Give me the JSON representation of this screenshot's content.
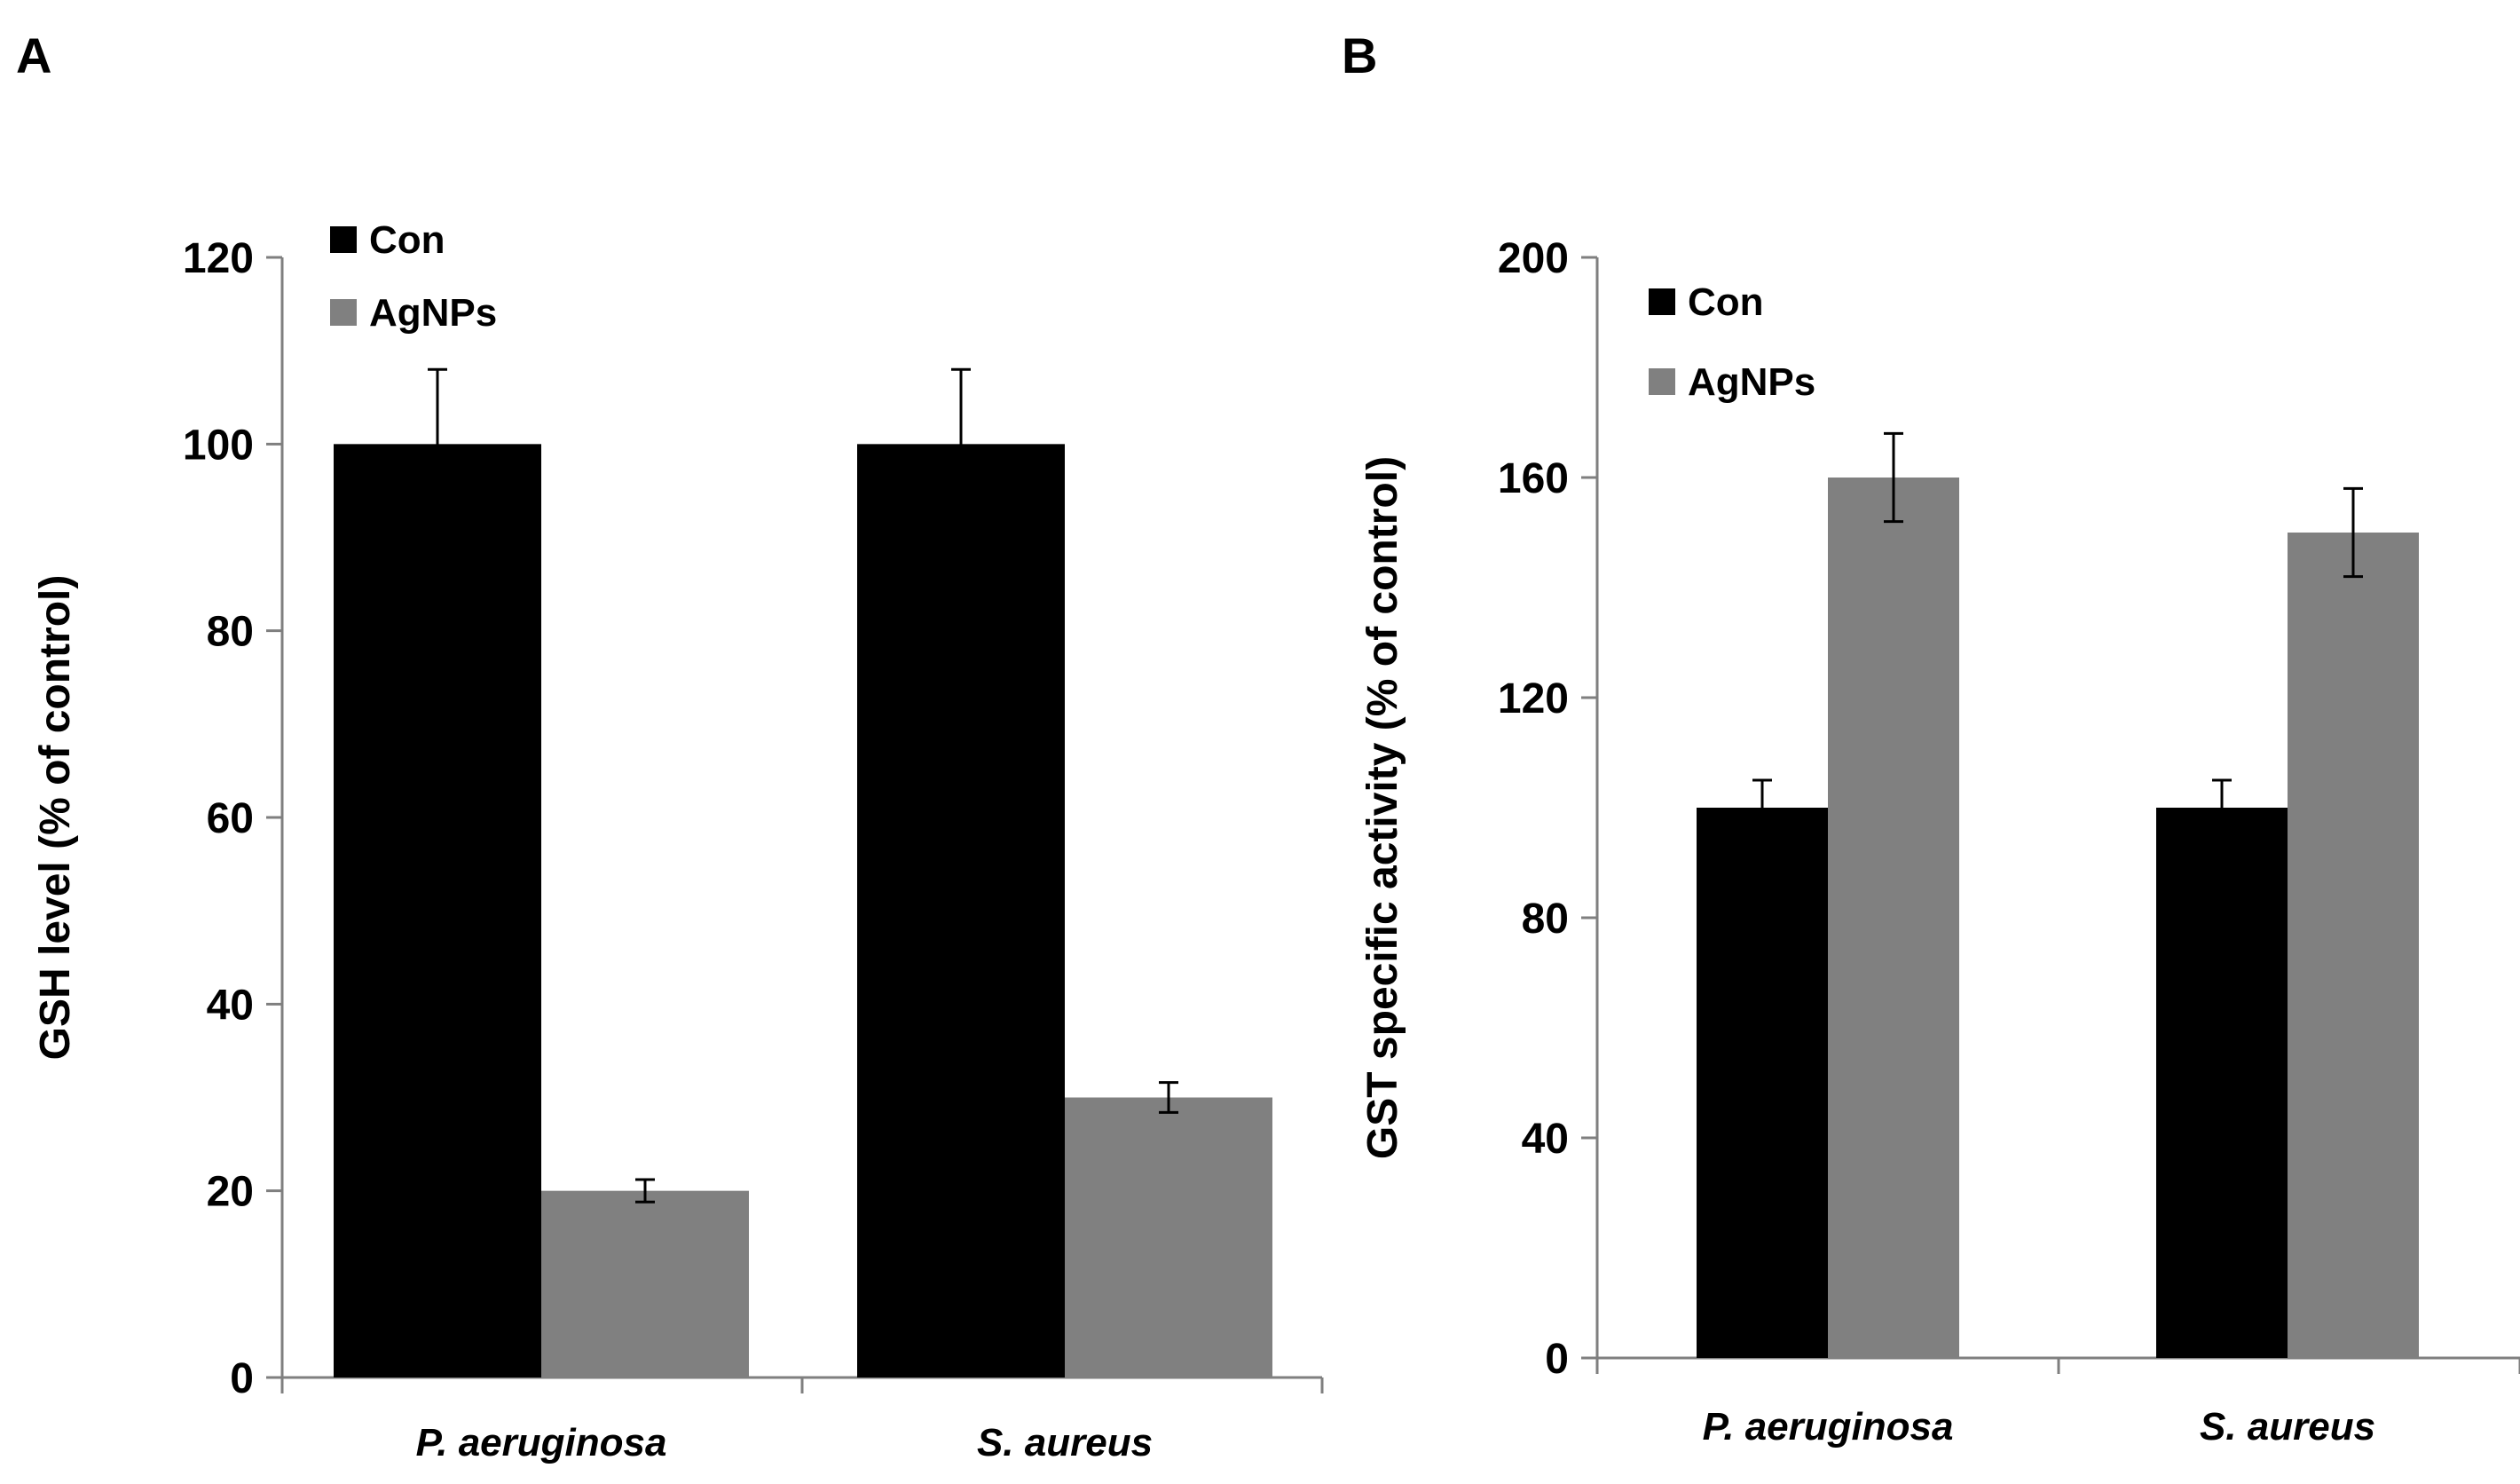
{
  "chart_data": [
    {
      "panel": "A",
      "type": "bar",
      "title": "",
      "xlabel": "",
      "ylabel": "GSH level (% of control)",
      "ylim": [
        0,
        120
      ],
      "yticks": [
        "0",
        "20",
        "40",
        "60",
        "80",
        "100",
        "120"
      ],
      "categories": [
        "P. aeruginosa",
        "S. aureus"
      ],
      "series": [
        {
          "name": "Con",
          "color": "#000000",
          "values": [
            100,
            100
          ],
          "errors": [
            8,
            8
          ]
        },
        {
          "name": "AgNPs",
          "color": "#808080",
          "values": [
            20,
            30
          ],
          "errors": [
            1.2,
            1.6
          ]
        }
      ],
      "legend": "top-left"
    },
    {
      "panel": "B",
      "type": "bar",
      "title": "",
      "xlabel": "",
      "ylabel": "GST specific activity (% of control)",
      "ylim": [
        0,
        200
      ],
      "yticks": [
        "0",
        "40",
        "80",
        "120",
        "160",
        "200"
      ],
      "categories": [
        "P. aeruginosa",
        "S. aureus"
      ],
      "series": [
        {
          "name": "Con",
          "color": "#000000",
          "values": [
            100,
            100
          ],
          "errors": [
            5,
            5
          ]
        },
        {
          "name": "AgNPs",
          "color": "#808080",
          "values": [
            160,
            150
          ],
          "errors": [
            8,
            8
          ]
        }
      ],
      "legend": "top-left"
    }
  ]
}
